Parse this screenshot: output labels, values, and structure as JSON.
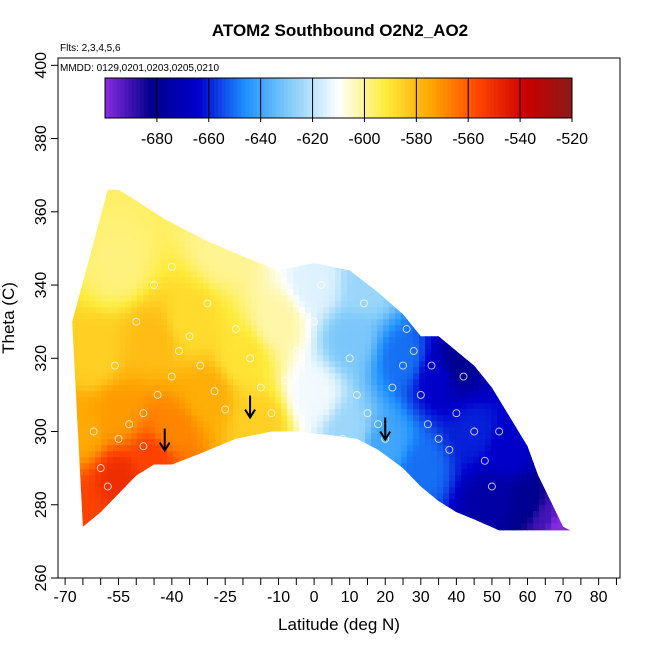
{
  "chart_data": {
    "type": "heatmap",
    "title": "ATOM2 Southbound O2N2_AO2",
    "annotations": [
      "Flts: 2,3,4,5,6",
      "MMDD: 0129,0201,0203,0205,0210"
    ],
    "xlabel": "Latitude (deg N)",
    "ylabel": "Theta (C)",
    "xlim": [
      -72,
      86
    ],
    "ylim": [
      260,
      402
    ],
    "x_ticks": [
      -70,
      -55,
      -40,
      -25,
      -10,
      0,
      10,
      20,
      30,
      40,
      50,
      60,
      70,
      80
    ],
    "x_tick_labels": [
      "-70",
      "-55",
      "-40",
      "-25",
      "-10",
      "0",
      "10",
      "20",
      "30",
      "40",
      "50",
      "60",
      "70",
      "80"
    ],
    "x_minor_ticks": [
      -65,
      -60,
      -50,
      -45,
      -35,
      -30,
      -20,
      -15,
      -5,
      5,
      15,
      25,
      35,
      45,
      55,
      65,
      75,
      85
    ],
    "y_ticks": [
      260,
      280,
      300,
      320,
      340,
      360,
      380,
      400
    ],
    "y_tick_labels": [
      "260",
      "280",
      "300",
      "320",
      "340",
      "360",
      "380",
      "400"
    ],
    "colorbar": {
      "range": [
        -700,
        -520
      ],
      "ticks": [
        -680,
        -660,
        -640,
        -620,
        -600,
        -580,
        -560,
        -540,
        -520
      ],
      "tick_labels": [
        "-680",
        "-660",
        "-640",
        "-620",
        "-600",
        "-580",
        "-560",
        "-540",
        "-520"
      ],
      "colors": [
        "#8a2be2",
        "#00008b",
        "#0000cd",
        "#1e90ff",
        "#87cefa",
        "#ffffff",
        "#ffeb3b",
        "#ffa500",
        "#ff4500",
        "#cc0000",
        "#8b1a1a"
      ]
    },
    "region_top": [
      [
        -68,
        330
      ],
      [
        -63,
        348
      ],
      [
        -58,
        366
      ],
      [
        -55,
        366
      ],
      [
        -50,
        363
      ],
      [
        -42,
        358
      ],
      [
        -30,
        352
      ],
      [
        -18,
        347
      ],
      [
        -10,
        344
      ],
      [
        0,
        346
      ],
      [
        10,
        344
      ],
      [
        18,
        338
      ],
      [
        25,
        332
      ],
      [
        30,
        326
      ],
      [
        35,
        326
      ],
      [
        40,
        322
      ],
      [
        45,
        318
      ],
      [
        50,
        312
      ],
      [
        55,
        304
      ],
      [
        60,
        296
      ],
      [
        63,
        288
      ],
      [
        66,
        282
      ],
      [
        70,
        274
      ],
      [
        72,
        273
      ]
    ],
    "region_bottom": [
      [
        -65,
        274
      ],
      [
        -60,
        278
      ],
      [
        -55,
        283
      ],
      [
        -50,
        288
      ],
      [
        -45,
        291
      ],
      [
        -40,
        291
      ],
      [
        -32,
        294
      ],
      [
        -22,
        298
      ],
      [
        -12,
        300
      ],
      [
        -5,
        300
      ],
      [
        5,
        299
      ],
      [
        12,
        298
      ],
      [
        18,
        295
      ],
      [
        25,
        290
      ],
      [
        30,
        285
      ],
      [
        35,
        281
      ],
      [
        40,
        278
      ],
      [
        45,
        276
      ],
      [
        52,
        273
      ],
      [
        60,
        273
      ],
      [
        72,
        273
      ]
    ],
    "field_samples": [
      {
        "lat": -65,
        "theta": 278,
        "value": -555
      },
      {
        "lat": -65,
        "theta": 300,
        "value": -575
      },
      {
        "lat": -62,
        "theta": 320,
        "value": -585
      },
      {
        "lat": -55,
        "theta": 287,
        "value": -550
      },
      {
        "lat": -55,
        "theta": 305,
        "value": -572
      },
      {
        "lat": -55,
        "theta": 345,
        "value": -598
      },
      {
        "lat": -45,
        "theta": 293,
        "value": -555
      },
      {
        "lat": -45,
        "theta": 325,
        "value": -580
      },
      {
        "lat": -40,
        "theta": 300,
        "value": -568
      },
      {
        "lat": -35,
        "theta": 330,
        "value": -588
      },
      {
        "lat": -30,
        "theta": 310,
        "value": -576
      },
      {
        "lat": -25,
        "theta": 350,
        "value": -600
      },
      {
        "lat": -20,
        "theta": 320,
        "value": -590
      },
      {
        "lat": -15,
        "theta": 302,
        "value": -585
      },
      {
        "lat": -10,
        "theta": 330,
        "value": -602
      },
      {
        "lat": 0,
        "theta": 310,
        "value": -612
      },
      {
        "lat": 0,
        "theta": 340,
        "value": -615
      },
      {
        "lat": 10,
        "theta": 300,
        "value": -625
      },
      {
        "lat": 10,
        "theta": 325,
        "value": -630
      },
      {
        "lat": 15,
        "theta": 340,
        "value": -625
      },
      {
        "lat": 20,
        "theta": 296,
        "value": -640
      },
      {
        "lat": 25,
        "theta": 320,
        "value": -650
      },
      {
        "lat": 30,
        "theta": 290,
        "value": -650
      },
      {
        "lat": 35,
        "theta": 315,
        "value": -665
      },
      {
        "lat": 40,
        "theta": 318,
        "value": -680
      },
      {
        "lat": 45,
        "theta": 300,
        "value": -660
      },
      {
        "lat": 50,
        "theta": 280,
        "value": -675
      },
      {
        "lat": 55,
        "theta": 295,
        "value": -665
      },
      {
        "lat": 60,
        "theta": 280,
        "value": -680
      },
      {
        "lat": 65,
        "theta": 276,
        "value": -690
      },
      {
        "lat": 68,
        "theta": 274,
        "value": -700
      }
    ],
    "sample_points": [
      [
        -55,
        298
      ],
      [
        -52,
        302
      ],
      [
        -48,
        305
      ],
      [
        -44,
        310
      ],
      [
        -40,
        315
      ],
      [
        -38,
        322
      ],
      [
        -35,
        326
      ],
      [
        -32,
        318
      ],
      [
        -28,
        311
      ],
      [
        -25,
        306
      ],
      [
        -50,
        330
      ],
      [
        -45,
        340
      ],
      [
        -40,
        345
      ],
      [
        -30,
        335
      ],
      [
        -22,
        328
      ],
      [
        -18,
        320
      ],
      [
        -15,
        312
      ],
      [
        -12,
        305
      ],
      [
        -8,
        314
      ],
      [
        -5,
        322
      ],
      [
        0,
        330
      ],
      [
        2,
        340
      ],
      [
        5,
        348
      ],
      [
        10,
        320
      ],
      [
        12,
        310
      ],
      [
        15,
        305
      ],
      [
        18,
        302
      ],
      [
        20,
        298
      ],
      [
        22,
        312
      ],
      [
        25,
        318
      ],
      [
        28,
        322
      ],
      [
        30,
        310
      ],
      [
        32,
        302
      ],
      [
        35,
        298
      ],
      [
        38,
        295
      ],
      [
        40,
        305
      ],
      [
        42,
        315
      ],
      [
        45,
        300
      ],
      [
        48,
        292
      ],
      [
        50,
        285
      ],
      [
        -60,
        290
      ],
      [
        -58,
        285
      ],
      [
        -62,
        300
      ],
      [
        -56,
        318
      ],
      [
        -48,
        296
      ],
      [
        8,
        298
      ],
      [
        14,
        335
      ],
      [
        26,
        328
      ],
      [
        33,
        318
      ],
      [
        52,
        300
      ]
    ],
    "arrows": [
      [
        -42,
        297
      ],
      [
        -18,
        306
      ],
      [
        20,
        300
      ]
    ]
  }
}
